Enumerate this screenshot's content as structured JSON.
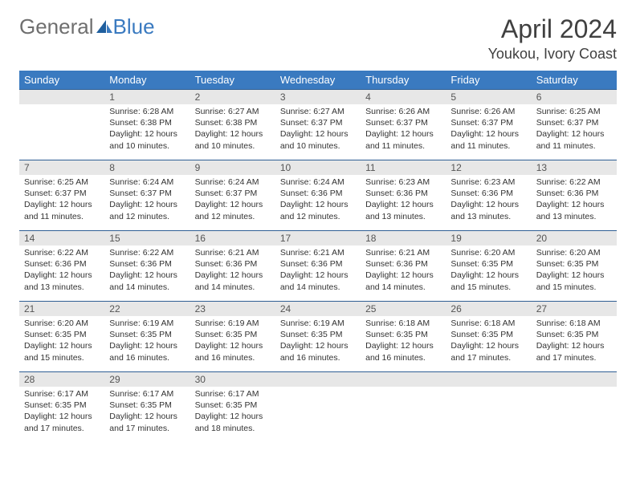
{
  "logo": {
    "text1": "General",
    "text2": "Blue"
  },
  "title": "April 2024",
  "location": "Youkou, Ivory Coast",
  "colors": {
    "header_bg": "#3a7ac0",
    "header_text": "#ffffff",
    "daynum_bg": "#e7e7e7",
    "border": "#2f5f94",
    "logo_gray": "#6f6f6f",
    "logo_blue": "#3a7ac0",
    "text": "#333333"
  },
  "weekdays": [
    "Sunday",
    "Monday",
    "Tuesday",
    "Wednesday",
    "Thursday",
    "Friday",
    "Saturday"
  ],
  "weeks": [
    [
      {
        "n": "",
        "sunrise": "",
        "sunset": "",
        "daylight": ""
      },
      {
        "n": "1",
        "sunrise": "Sunrise: 6:28 AM",
        "sunset": "Sunset: 6:38 PM",
        "daylight": "Daylight: 12 hours and 10 minutes."
      },
      {
        "n": "2",
        "sunrise": "Sunrise: 6:27 AM",
        "sunset": "Sunset: 6:38 PM",
        "daylight": "Daylight: 12 hours and 10 minutes."
      },
      {
        "n": "3",
        "sunrise": "Sunrise: 6:27 AM",
        "sunset": "Sunset: 6:37 PM",
        "daylight": "Daylight: 12 hours and 10 minutes."
      },
      {
        "n": "4",
        "sunrise": "Sunrise: 6:26 AM",
        "sunset": "Sunset: 6:37 PM",
        "daylight": "Daylight: 12 hours and 11 minutes."
      },
      {
        "n": "5",
        "sunrise": "Sunrise: 6:26 AM",
        "sunset": "Sunset: 6:37 PM",
        "daylight": "Daylight: 12 hours and 11 minutes."
      },
      {
        "n": "6",
        "sunrise": "Sunrise: 6:25 AM",
        "sunset": "Sunset: 6:37 PM",
        "daylight": "Daylight: 12 hours and 11 minutes."
      }
    ],
    [
      {
        "n": "7",
        "sunrise": "Sunrise: 6:25 AM",
        "sunset": "Sunset: 6:37 PM",
        "daylight": "Daylight: 12 hours and 11 minutes."
      },
      {
        "n": "8",
        "sunrise": "Sunrise: 6:24 AM",
        "sunset": "Sunset: 6:37 PM",
        "daylight": "Daylight: 12 hours and 12 minutes."
      },
      {
        "n": "9",
        "sunrise": "Sunrise: 6:24 AM",
        "sunset": "Sunset: 6:37 PM",
        "daylight": "Daylight: 12 hours and 12 minutes."
      },
      {
        "n": "10",
        "sunrise": "Sunrise: 6:24 AM",
        "sunset": "Sunset: 6:36 PM",
        "daylight": "Daylight: 12 hours and 12 minutes."
      },
      {
        "n": "11",
        "sunrise": "Sunrise: 6:23 AM",
        "sunset": "Sunset: 6:36 PM",
        "daylight": "Daylight: 12 hours and 13 minutes."
      },
      {
        "n": "12",
        "sunrise": "Sunrise: 6:23 AM",
        "sunset": "Sunset: 6:36 PM",
        "daylight": "Daylight: 12 hours and 13 minutes."
      },
      {
        "n": "13",
        "sunrise": "Sunrise: 6:22 AM",
        "sunset": "Sunset: 6:36 PM",
        "daylight": "Daylight: 12 hours and 13 minutes."
      }
    ],
    [
      {
        "n": "14",
        "sunrise": "Sunrise: 6:22 AM",
        "sunset": "Sunset: 6:36 PM",
        "daylight": "Daylight: 12 hours and 13 minutes."
      },
      {
        "n": "15",
        "sunrise": "Sunrise: 6:22 AM",
        "sunset": "Sunset: 6:36 PM",
        "daylight": "Daylight: 12 hours and 14 minutes."
      },
      {
        "n": "16",
        "sunrise": "Sunrise: 6:21 AM",
        "sunset": "Sunset: 6:36 PM",
        "daylight": "Daylight: 12 hours and 14 minutes."
      },
      {
        "n": "17",
        "sunrise": "Sunrise: 6:21 AM",
        "sunset": "Sunset: 6:36 PM",
        "daylight": "Daylight: 12 hours and 14 minutes."
      },
      {
        "n": "18",
        "sunrise": "Sunrise: 6:21 AM",
        "sunset": "Sunset: 6:36 PM",
        "daylight": "Daylight: 12 hours and 14 minutes."
      },
      {
        "n": "19",
        "sunrise": "Sunrise: 6:20 AM",
        "sunset": "Sunset: 6:35 PM",
        "daylight": "Daylight: 12 hours and 15 minutes."
      },
      {
        "n": "20",
        "sunrise": "Sunrise: 6:20 AM",
        "sunset": "Sunset: 6:35 PM",
        "daylight": "Daylight: 12 hours and 15 minutes."
      }
    ],
    [
      {
        "n": "21",
        "sunrise": "Sunrise: 6:20 AM",
        "sunset": "Sunset: 6:35 PM",
        "daylight": "Daylight: 12 hours and 15 minutes."
      },
      {
        "n": "22",
        "sunrise": "Sunrise: 6:19 AM",
        "sunset": "Sunset: 6:35 PM",
        "daylight": "Daylight: 12 hours and 16 minutes."
      },
      {
        "n": "23",
        "sunrise": "Sunrise: 6:19 AM",
        "sunset": "Sunset: 6:35 PM",
        "daylight": "Daylight: 12 hours and 16 minutes."
      },
      {
        "n": "24",
        "sunrise": "Sunrise: 6:19 AM",
        "sunset": "Sunset: 6:35 PM",
        "daylight": "Daylight: 12 hours and 16 minutes."
      },
      {
        "n": "25",
        "sunrise": "Sunrise: 6:18 AM",
        "sunset": "Sunset: 6:35 PM",
        "daylight": "Daylight: 12 hours and 16 minutes."
      },
      {
        "n": "26",
        "sunrise": "Sunrise: 6:18 AM",
        "sunset": "Sunset: 6:35 PM",
        "daylight": "Daylight: 12 hours and 17 minutes."
      },
      {
        "n": "27",
        "sunrise": "Sunrise: 6:18 AM",
        "sunset": "Sunset: 6:35 PM",
        "daylight": "Daylight: 12 hours and 17 minutes."
      }
    ],
    [
      {
        "n": "28",
        "sunrise": "Sunrise: 6:17 AM",
        "sunset": "Sunset: 6:35 PM",
        "daylight": "Daylight: 12 hours and 17 minutes."
      },
      {
        "n": "29",
        "sunrise": "Sunrise: 6:17 AM",
        "sunset": "Sunset: 6:35 PM",
        "daylight": "Daylight: 12 hours and 17 minutes."
      },
      {
        "n": "30",
        "sunrise": "Sunrise: 6:17 AM",
        "sunset": "Sunset: 6:35 PM",
        "daylight": "Daylight: 12 hours and 18 minutes."
      },
      {
        "n": "",
        "sunrise": "",
        "sunset": "",
        "daylight": ""
      },
      {
        "n": "",
        "sunrise": "",
        "sunset": "",
        "daylight": ""
      },
      {
        "n": "",
        "sunrise": "",
        "sunset": "",
        "daylight": ""
      },
      {
        "n": "",
        "sunrise": "",
        "sunset": "",
        "daylight": ""
      }
    ]
  ]
}
